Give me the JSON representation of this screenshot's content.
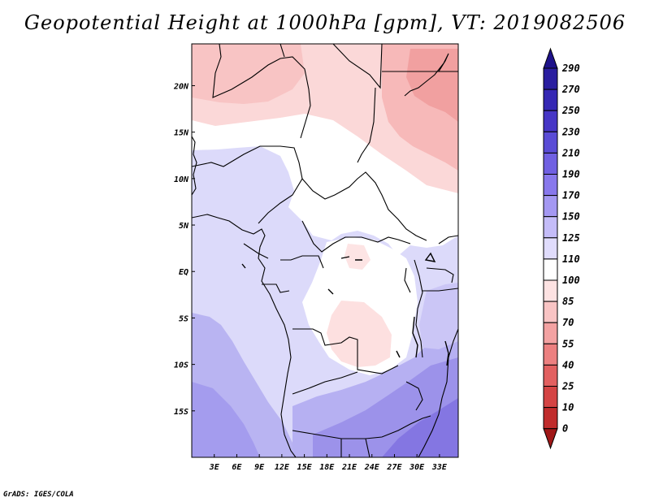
{
  "title": "Geopotential Height at 1000hPa [gpm], VT: 2019082506",
  "credit": "GrADS: IGES/COLA",
  "map": {
    "lon_range": [
      0,
      35.5
    ],
    "lat_range": [
      -20,
      24.5
    ],
    "lon_ticks": [
      {
        "value": 3,
        "label": "3E"
      },
      {
        "value": 6,
        "label": "6E"
      },
      {
        "value": 9,
        "label": "9E"
      },
      {
        "value": 12,
        "label": "12E"
      },
      {
        "value": 15,
        "label": "15E"
      },
      {
        "value": 18,
        "label": "18E"
      },
      {
        "value": 21,
        "label": "21E"
      },
      {
        "value": 24,
        "label": "24E"
      },
      {
        "value": 27,
        "label": "27E"
      },
      {
        "value": 30,
        "label": "30E"
      },
      {
        "value": 33,
        "label": "33E"
      }
    ],
    "lat_ticks": [
      {
        "value": 20,
        "label": "20N"
      },
      {
        "value": 15,
        "label": "15N"
      },
      {
        "value": 10,
        "label": "10N"
      },
      {
        "value": 5,
        "label": "5N"
      },
      {
        "value": 0,
        "label": "EQ"
      },
      {
        "value": -5,
        "label": "5S"
      },
      {
        "value": -10,
        "label": "10S"
      },
      {
        "value": -15,
        "label": "15S"
      }
    ]
  },
  "colorbar": {
    "levels": [
      {
        "label": "290",
        "color": "#1e128a"
      },
      {
        "label": "270",
        "color": "#2a1ea0"
      },
      {
        "label": "250",
        "color": "#3528b4"
      },
      {
        "label": "230",
        "color": "#4636c6"
      },
      {
        "label": "210",
        "color": "#5a4cd6"
      },
      {
        "label": "190",
        "color": "#7060e2"
      },
      {
        "label": "170",
        "color": "#8878ec"
      },
      {
        "label": "150",
        "color": "#a498f2"
      },
      {
        "label": "125",
        "color": "#c4bcf8"
      },
      {
        "label": "110",
        "color": "#e0dcfc"
      },
      {
        "label": "100",
        "color": "#ffffff"
      },
      {
        "label": "85",
        "color": "#fde2e2"
      },
      {
        "label": "70",
        "color": "#f9c4c4"
      },
      {
        "label": "55",
        "color": "#f3a2a2"
      },
      {
        "label": "40",
        "color": "#ec8080"
      },
      {
        "label": "25",
        "color": "#e26060"
      },
      {
        "label": "10",
        "color": "#d44444"
      },
      {
        "label": "0",
        "color": "#c02c2c"
      },
      {
        "label": "",
        "color": "#a01818"
      }
    ]
  }
}
